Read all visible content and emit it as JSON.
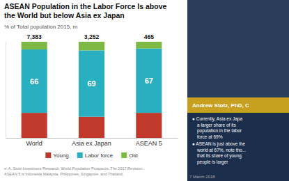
{
  "chart_data": {
    "type": "bar",
    "stacked": true,
    "title": [
      "ASEAN Population in the Labor Force Is above",
      "the World but below Asia ex Japan"
    ],
    "subtitle": "% of Total population 2015, m",
    "categories": [
      "World",
      "Asia ex Japan",
      "ASEAN 5"
    ],
    "series": [
      {
        "name": "Young",
        "color": "#c0392b",
        "values": [
          26,
          22,
          26
        ]
      },
      {
        "name": "Labor force",
        "color": "#29afc0",
        "values": [
          66,
          69,
          67
        ],
        "data_labels": true
      },
      {
        "name": "Old",
        "color": "#7db843",
        "values": [
          8,
          9,
          7
        ]
      }
    ],
    "totals": [
      {
        "value": 7383,
        "label": "7,383"
      },
      {
        "value": 3252,
        "label": "3,252"
      },
      {
        "value": 465,
        "label": "465"
      }
    ],
    "ylim": [
      0,
      100
    ],
    "tick_labels": "x",
    "grid": false,
    "legend": "bottom",
    "source": [
      "e: A. Stotz Investment Research, World Population Prospects: The 2017 Revision.",
      "ASEAN 5 is Indonesia Malaysia, Philippines, Singapore, and Thailand."
    ],
    "sidebar": {
      "name": "Andrew Stotz, PhD, C",
      "bullets": [
        [
          "● Currently, Asia ex Japa",
          "a larger share of its",
          "population in the labor",
          "force at 69%"
        ],
        [
          "● ASEAN is just above the",
          "world at 67%, note tho...",
          "that its share of young",
          "people is larger"
        ]
      ],
      "date": "7 March 2018"
    }
  }
}
